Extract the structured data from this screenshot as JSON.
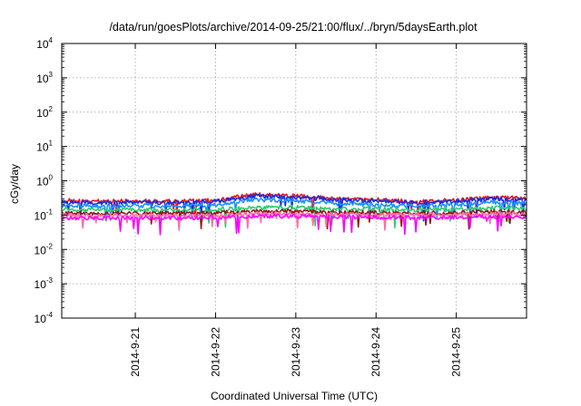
{
  "chart_data": {
    "type": "line",
    "title": "/data/run/goesPlots/archive/2014-09-25/21:00/flux/../bryn/5daysEarth.plot",
    "xlabel": "Coordinated Universal Time (UTC)",
    "ylabel": "cGy/day",
    "yscale": "log",
    "ylim": [
      0.0001,
      10000
    ],
    "xlim": [
      "2014-09-20 02:00",
      "2014-09-25 21:00"
    ],
    "y_ticks": [
      {
        "base": "10",
        "exp": "-4"
      },
      {
        "base": "10",
        "exp": "-3"
      },
      {
        "base": "10",
        "exp": "-2"
      },
      {
        "base": "10",
        "exp": "-1"
      },
      {
        "base": "10",
        "exp": "0"
      },
      {
        "base": "10",
        "exp": "1"
      },
      {
        "base": "10",
        "exp": "2"
      },
      {
        "base": "10",
        "exp": "3"
      },
      {
        "base": "10",
        "exp": "4"
      }
    ],
    "x_ticks": [
      "2014-9-21",
      "2014-9-22",
      "2014-9-23",
      "2014-9-24",
      "2014-9-25"
    ],
    "grid": true,
    "legend": "none",
    "series": [
      {
        "color": "#e8141e",
        "points": [
          [
            "2014-09-20 02:00",
            0.27
          ],
          [
            "2014-09-20 12:00",
            0.25
          ],
          [
            "2014-09-21 00:00",
            0.26
          ],
          [
            "2014-09-21 12:00",
            0.25
          ],
          [
            "2014-09-22 00:00",
            0.27
          ],
          [
            "2014-09-22 12:00",
            0.4
          ],
          [
            "2014-09-23 00:00",
            0.36
          ],
          [
            "2014-09-23 12:00",
            0.3
          ],
          [
            "2014-09-24 00:00",
            0.28
          ],
          [
            "2014-09-24 12:00",
            0.25
          ],
          [
            "2014-09-25 00:00",
            0.27
          ],
          [
            "2014-09-25 12:00",
            0.33
          ],
          [
            "2014-09-25 21:00",
            0.3
          ]
        ]
      },
      {
        "color": "#1a2ee0",
        "points": [
          [
            "2014-09-20 02:00",
            0.25
          ],
          [
            "2014-09-20 12:00",
            0.23
          ],
          [
            "2014-09-21 00:00",
            0.24
          ],
          [
            "2014-09-21 12:00",
            0.23
          ],
          [
            "2014-09-22 00:00",
            0.25
          ],
          [
            "2014-09-22 12:00",
            0.36
          ],
          [
            "2014-09-23 00:00",
            0.33
          ],
          [
            "2014-09-23 12:00",
            0.28
          ],
          [
            "2014-09-24 00:00",
            0.26
          ],
          [
            "2014-09-24 12:00",
            0.23
          ],
          [
            "2014-09-25 00:00",
            0.25
          ],
          [
            "2014-09-25 12:00",
            0.3
          ],
          [
            "2014-09-25 21:00",
            0.28
          ]
        ]
      },
      {
        "color": "#1e90ff",
        "points": [
          [
            "2014-09-20 02:00",
            0.2
          ],
          [
            "2014-09-20 12:00",
            0.18
          ],
          [
            "2014-09-21 00:00",
            0.19
          ],
          [
            "2014-09-21 12:00",
            0.18
          ],
          [
            "2014-09-22 00:00",
            0.2
          ],
          [
            "2014-09-22 12:00",
            0.28
          ],
          [
            "2014-09-23 00:00",
            0.26
          ],
          [
            "2014-09-23 12:00",
            0.22
          ],
          [
            "2014-09-24 00:00",
            0.2
          ],
          [
            "2014-09-24 12:00",
            0.18
          ],
          [
            "2014-09-25 00:00",
            0.2
          ],
          [
            "2014-09-25 12:00",
            0.24
          ],
          [
            "2014-09-25 21:00",
            0.22
          ]
        ]
      },
      {
        "color": "#2ecc71",
        "points": [
          [
            "2014-09-20 02:00",
            0.145
          ],
          [
            "2014-09-20 12:00",
            0.14
          ],
          [
            "2014-09-21 00:00",
            0.142
          ],
          [
            "2014-09-21 12:00",
            0.14
          ],
          [
            "2014-09-22 00:00",
            0.145
          ],
          [
            "2014-09-22 12:00",
            0.17
          ],
          [
            "2014-09-23 00:00",
            0.165
          ],
          [
            "2014-09-23 12:00",
            0.155
          ],
          [
            "2014-09-24 00:00",
            0.15
          ],
          [
            "2014-09-24 12:00",
            0.145
          ],
          [
            "2014-09-25 00:00",
            0.15
          ],
          [
            "2014-09-25 12:00",
            0.16
          ],
          [
            "2014-09-25 21:00",
            0.155
          ]
        ]
      },
      {
        "color": "#8b1a1a",
        "points": [
          [
            "2014-09-20 02:00",
            0.115
          ],
          [
            "2014-09-20 12:00",
            0.112
          ],
          [
            "2014-09-21 00:00",
            0.114
          ],
          [
            "2014-09-21 12:00",
            0.112
          ],
          [
            "2014-09-22 00:00",
            0.115
          ],
          [
            "2014-09-22 12:00",
            0.13
          ],
          [
            "2014-09-23 00:00",
            0.127
          ],
          [
            "2014-09-23 12:00",
            0.12
          ],
          [
            "2014-09-24 00:00",
            0.118
          ],
          [
            "2014-09-24 12:00",
            0.115
          ],
          [
            "2014-09-25 00:00",
            0.118
          ],
          [
            "2014-09-25 12:00",
            0.125
          ],
          [
            "2014-09-25 21:00",
            0.12
          ]
        ]
      },
      {
        "color": "#ff6fa8",
        "points": [
          [
            "2014-09-20 02:00",
            0.1
          ],
          [
            "2014-09-20 12:00",
            0.098
          ],
          [
            "2014-09-21 00:00",
            0.099
          ],
          [
            "2014-09-21 12:00",
            0.098
          ],
          [
            "2014-09-22 00:00",
            0.1
          ],
          [
            "2014-09-22 12:00",
            0.112
          ],
          [
            "2014-09-23 00:00",
            0.109
          ],
          [
            "2014-09-23 12:00",
            0.104
          ],
          [
            "2014-09-24 00:00",
            0.102
          ],
          [
            "2014-09-24 12:00",
            0.1
          ],
          [
            "2014-09-25 00:00",
            0.103
          ],
          [
            "2014-09-25 12:00",
            0.108
          ],
          [
            "2014-09-25 21:00",
            0.105
          ]
        ]
      },
      {
        "color": "#ff00ff",
        "points": [
          [
            "2014-09-20 02:00",
            0.085
          ],
          [
            "2014-09-20 12:00",
            0.082
          ],
          [
            "2014-09-21 00:00",
            0.084
          ],
          [
            "2014-09-21 12:00",
            0.082
          ],
          [
            "2014-09-22 00:00",
            0.085
          ],
          [
            "2014-09-22 12:00",
            0.095
          ],
          [
            "2014-09-23 00:00",
            0.093
          ],
          [
            "2014-09-23 12:00",
            0.089
          ],
          [
            "2014-09-24 00:00",
            0.087
          ],
          [
            "2014-09-24 12:00",
            0.085
          ],
          [
            "2014-09-25 00:00",
            0.088
          ],
          [
            "2014-09-25 12:00",
            0.092
          ],
          [
            "2014-09-25 21:00",
            0.09
          ]
        ]
      }
    ]
  }
}
